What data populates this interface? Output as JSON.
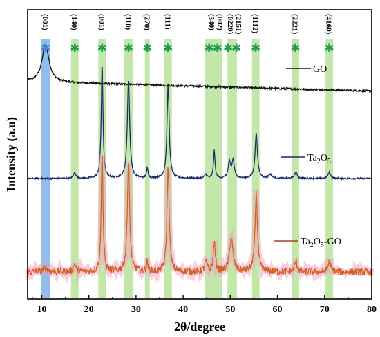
{
  "chart_data": {
    "type": "line",
    "title": "",
    "xlabel": "2θ/degree",
    "ylabel": "Intensity (a.u)",
    "xlim": [
      7,
      80
    ],
    "x_ticks": [
      "10",
      "20",
      "30",
      "40",
      "50",
      "60",
      "70",
      "80"
    ],
    "grid": false,
    "highlight_bands": [
      {
        "center": 10.8,
        "width": 2.0,
        "label": "(001)",
        "color": "#7fb0e8",
        "star_color": "#3f86d8"
      },
      {
        "center": 17.0,
        "width": 1.6,
        "label": "(140)",
        "color": "#b9e39a",
        "star_color": "#1e9a52"
      },
      {
        "center": 22.8,
        "width": 1.6,
        "label": "(001)",
        "color": "#b9e39a",
        "star_color": "#1e9a52"
      },
      {
        "center": 28.4,
        "width": 1.8,
        "label": "(110)",
        "color": "#b9e39a",
        "star_color": "#1e9a52"
      },
      {
        "center": 32.4,
        "width": 1.0,
        "label": "(270)",
        "color": "#b9e39a",
        "star_color": "#1e9a52"
      },
      {
        "center": 36.8,
        "width": 1.6,
        "label": "(111)",
        "color": "#b9e39a",
        "star_color": "#1e9a52"
      },
      {
        "center": 46.4,
        "width": 3.6,
        "label": "(340)",
        "label2": "(002)",
        "color": "#b9e39a",
        "star_color": "#1e9a52",
        "stars": 2
      },
      {
        "center": 50.4,
        "width": 2.0,
        "label": "(0220)",
        "label2": "(2151)",
        "color": "#b9e39a",
        "star_color": "#1e9a52",
        "stars": 2
      },
      {
        "center": 55.4,
        "width": 1.6,
        "label": "(1112)",
        "color": "#b9e39a",
        "star_color": "#1e9a52"
      },
      {
        "center": 63.8,
        "width": 1.6,
        "label": "(2221)",
        "color": "#b9e39a",
        "star_color": "#1e9a52"
      },
      {
        "center": 71.0,
        "width": 1.6,
        "label": "(4160)",
        "color": "#b9e39a",
        "star_color": "#1e9a52"
      }
    ],
    "series": [
      {
        "name": "GO",
        "color": "#111111",
        "baseline": 0.14,
        "baseline_slope": -0.04,
        "noise": 0.004,
        "peaks": [
          [
            10.8,
            0.16,
            0.9
          ]
        ]
      },
      {
        "name": "Ta2O5",
        "color": "#1a2a6c",
        "baseline": 0.0,
        "noise": 0.004,
        "peaks": [
          [
            17.0,
            0.03,
            0.3
          ],
          [
            22.8,
            0.58,
            0.22
          ],
          [
            28.4,
            0.5,
            0.3
          ],
          [
            32.4,
            0.05,
            0.2
          ],
          [
            36.8,
            0.47,
            0.28
          ],
          [
            44.8,
            0.02,
            0.3
          ],
          [
            46.6,
            0.14,
            0.2
          ],
          [
            49.8,
            0.08,
            0.3
          ],
          [
            50.6,
            0.09,
            0.3
          ],
          [
            55.5,
            0.23,
            0.3
          ],
          [
            58.5,
            0.02,
            0.4
          ],
          [
            63.9,
            0.03,
            0.35
          ],
          [
            71.0,
            0.03,
            0.35
          ]
        ]
      },
      {
        "name": "Ta2O5-GO",
        "color": "#e03018",
        "peak_color": "#c88a2a",
        "baseline": 0.0,
        "noise": 0.018,
        "peaks": [
          [
            10.8,
            0.02,
            0.6
          ],
          [
            17.0,
            0.04,
            0.3
          ],
          [
            22.8,
            0.62,
            0.22
          ],
          [
            28.4,
            0.55,
            0.3
          ],
          [
            32.4,
            0.05,
            0.2
          ],
          [
            36.8,
            0.53,
            0.28
          ],
          [
            44.8,
            0.05,
            0.3
          ],
          [
            46.6,
            0.15,
            0.25
          ],
          [
            50.2,
            0.17,
            0.45
          ],
          [
            55.5,
            0.4,
            0.3
          ],
          [
            63.9,
            0.05,
            0.35
          ],
          [
            71.0,
            0.05,
            0.35
          ]
        ]
      }
    ],
    "legend": [
      {
        "text": "GO",
        "color": "#111111"
      },
      {
        "text": "Ta",
        "sub": "2",
        "text2": "O",
        "sub2": "5",
        "color": "#1a2a6c"
      },
      {
        "text": "Ta",
        "sub": "2",
        "text2": "O",
        "sub2": "5",
        "text3": "-GO",
        "color": "#a0461c"
      }
    ]
  }
}
